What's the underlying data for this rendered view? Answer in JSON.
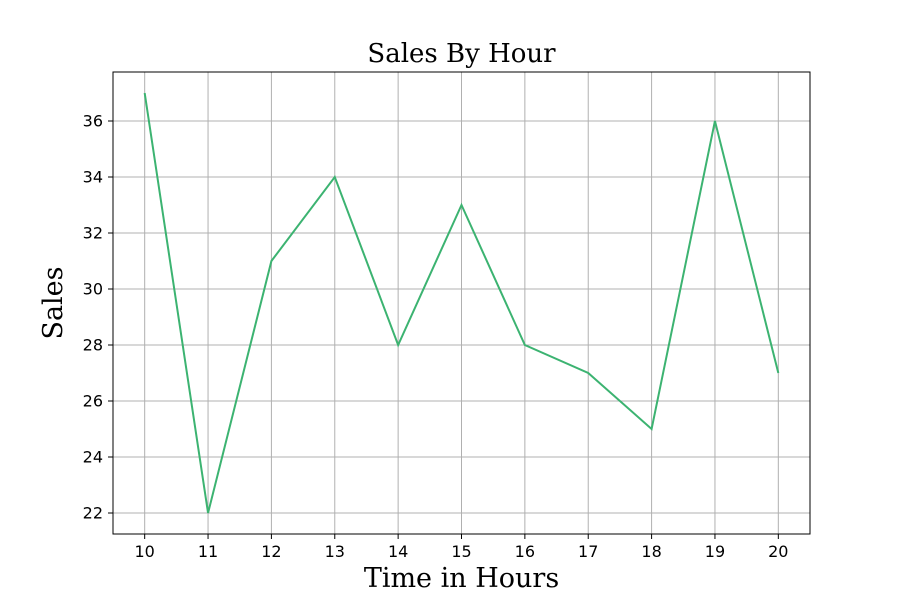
{
  "chart_data": {
    "type": "line",
    "title": "Sales By Hour",
    "xlabel": "Time in Hours",
    "ylabel": "Sales",
    "x": [
      10,
      11,
      12,
      13,
      14,
      15,
      16,
      17,
      18,
      19,
      20
    ],
    "series": [
      {
        "values": [
          37,
          22,
          31,
          34,
          28,
          33,
          28,
          27,
          25,
          36,
          27
        ],
        "color": "#3cb371"
      }
    ],
    "xticks": [
      10,
      11,
      12,
      13,
      14,
      15,
      16,
      17,
      18,
      19,
      20
    ],
    "yticks": [
      22,
      24,
      26,
      28,
      30,
      32,
      34,
      36
    ],
    "xlim": [
      9.5,
      20.5
    ],
    "ylim": [
      21.25,
      37.75
    ],
    "grid": true
  }
}
